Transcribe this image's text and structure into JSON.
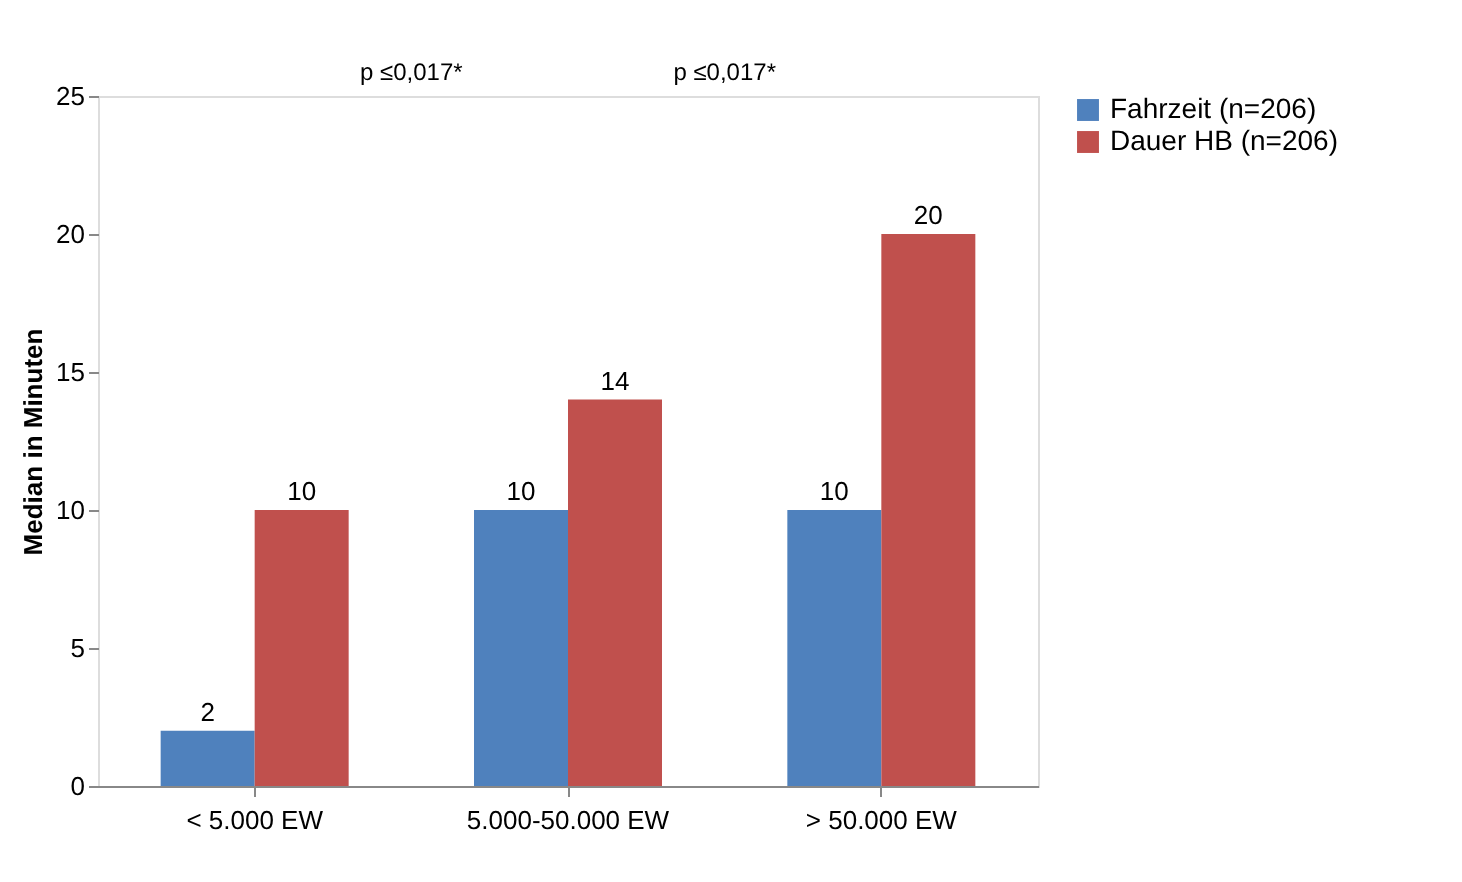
{
  "chart_data": {
    "type": "bar",
    "ylabel": "Median in Minuten",
    "categories": [
      "< 5.000 EW",
      "5.000-50.000 EW",
      "> 50.000 EW"
    ],
    "series": [
      {
        "name": "Fahrzeit (n=206)",
        "color": "#4f81bd",
        "values": [
          2,
          10,
          10
        ]
      },
      {
        "name": "Dauer HB (n=206)",
        "color": "#c0504d",
        "values": [
          10,
          14,
          20
        ]
      }
    ],
    "ylim": [
      0,
      25
    ],
    "yticks": [
      0,
      5,
      10,
      15,
      20,
      25
    ],
    "grid": false,
    "legend": "right",
    "data_labels": true,
    "annotations": [
      "p ≤0,017*",
      "p ≤0,017*"
    ]
  }
}
